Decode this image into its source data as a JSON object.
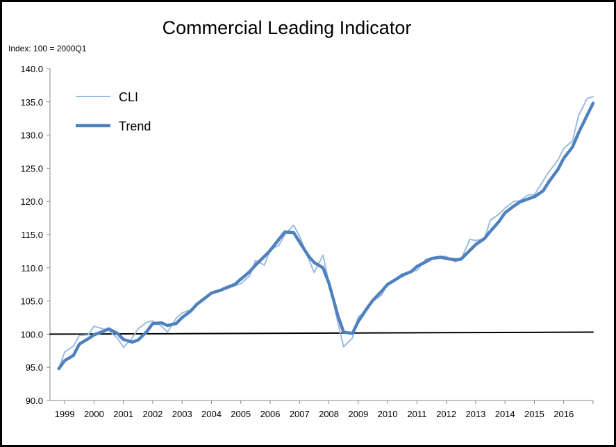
{
  "chart_data": {
    "type": "line",
    "title": "Commercial Leading Indicator",
    "subtitle": "Index: 100 = 2000Q1",
    "xlabel": "",
    "ylabel": "",
    "x_start": 1998.5,
    "x_end": 2017.0,
    "ylim": [
      90.0,
      140.0
    ],
    "y_ticks": [
      "90.0",
      "95.0",
      "100.0",
      "105.0",
      "110.0",
      "115.0",
      "120.0",
      "125.0",
      "130.0",
      "135.0",
      "140.0"
    ],
    "x_labels": [
      "1999",
      "2000",
      "2001",
      "2002",
      "2003",
      "2004",
      "2005",
      "2006",
      "2007",
      "2008",
      "2009",
      "2010",
      "2011",
      "2012",
      "2013",
      "2014",
      "2015",
      "2016"
    ],
    "grid": false,
    "legend_position": "top-left",
    "series": [
      {
        "name": "CLI",
        "color": "#9bbbe0",
        "x": [
          1998.8,
          1999.0,
          1999.3,
          1999.5,
          1999.8,
          2000.0,
          2000.3,
          2000.5,
          2000.8,
          2001.0,
          2001.3,
          2001.5,
          2001.8,
          2002.0,
          2002.3,
          2002.5,
          2002.8,
          2003.0,
          2003.3,
          2003.5,
          2003.8,
          2004.0,
          2004.3,
          2004.5,
          2004.8,
          2005.0,
          2005.3,
          2005.5,
          2005.8,
          2006.0,
          2006.3,
          2006.5,
          2006.8,
          2007.0,
          2007.3,
          2007.5,
          2007.8,
          2008.0,
          2008.3,
          2008.5,
          2008.8,
          2009.0,
          2009.3,
          2009.5,
          2009.8,
          2010.0,
          2010.3,
          2010.5,
          2010.8,
          2011.0,
          2011.3,
          2011.5,
          2011.8,
          2012.0,
          2012.3,
          2012.5,
          2012.8,
          2013.0,
          2013.3,
          2013.5,
          2013.8,
          2014.0,
          2014.3,
          2014.5,
          2014.8,
          2015.0,
          2015.3,
          2015.5,
          2015.8,
          2016.0,
          2016.3,
          2016.5,
          2016.8,
          2017.0
        ],
        "values": [
          94.8,
          97.3,
          98.2,
          99.8,
          99.9,
          101.2,
          100.8,
          100.6,
          99.4,
          98.0,
          99.4,
          100.8,
          101.8,
          102.0,
          101.2,
          100.3,
          102.4,
          103.2,
          103.7,
          104.5,
          105.6,
          106.2,
          106.5,
          106.8,
          107.3,
          107.6,
          108.8,
          111.1,
          110.4,
          112.7,
          113.4,
          115.0,
          116.4,
          114.8,
          111.4,
          109.3,
          111.9,
          107.8,
          101.9,
          98.1,
          99.4,
          102.6,
          103.6,
          105.0,
          105.9,
          107.6,
          108.4,
          108.6,
          109.4,
          109.6,
          111.3,
          111.4,
          111.7,
          111.7,
          110.9,
          111.2,
          114.3,
          114.1,
          114.4,
          117.2,
          118.1,
          119.0,
          120.0,
          120.1,
          121.0,
          121.0,
          123.1,
          124.5,
          126.2,
          128.0,
          129.1,
          132.9,
          135.5,
          135.8
        ]
      },
      {
        "name": "Trend",
        "color": "#4f81bd",
        "x": [
          1998.8,
          1999.0,
          1999.3,
          1999.5,
          1999.8,
          2000.0,
          2000.3,
          2000.5,
          2000.8,
          2001.0,
          2001.3,
          2001.5,
          2001.8,
          2002.0,
          2002.3,
          2002.5,
          2002.8,
          2003.0,
          2003.3,
          2003.5,
          2003.8,
          2004.0,
          2004.3,
          2004.5,
          2004.8,
          2005.0,
          2005.3,
          2005.5,
          2005.8,
          2006.0,
          2006.3,
          2006.5,
          2006.8,
          2007.0,
          2007.3,
          2007.5,
          2007.8,
          2008.0,
          2008.3,
          2008.5,
          2008.8,
          2009.0,
          2009.3,
          2009.5,
          2009.8,
          2010.0,
          2010.3,
          2010.5,
          2010.8,
          2011.0,
          2011.3,
          2011.5,
          2011.8,
          2012.0,
          2012.3,
          2012.5,
          2012.8,
          2013.0,
          2013.3,
          2013.5,
          2013.8,
          2014.0,
          2014.3,
          2014.5,
          2014.8,
          2015.0,
          2015.3,
          2015.5,
          2015.8,
          2016.0,
          2016.3,
          2016.5,
          2016.8,
          2017.0
        ],
        "values": [
          94.8,
          96.0,
          96.8,
          98.5,
          99.3,
          99.9,
          100.4,
          100.8,
          100.1,
          99.2,
          98.8,
          99.1,
          100.4,
          101.6,
          101.7,
          101.3,
          101.6,
          102.5,
          103.5,
          104.5,
          105.5,
          106.2,
          106.6,
          107.0,
          107.5,
          108.3,
          109.4,
          110.4,
          111.7,
          112.6,
          114.3,
          115.4,
          115.3,
          113.9,
          111.8,
          110.8,
          110.0,
          107.7,
          102.9,
          100.3,
          100.1,
          101.9,
          103.9,
          105.1,
          106.5,
          107.5,
          108.3,
          108.9,
          109.4,
          110.2,
          110.9,
          111.4,
          111.6,
          111.4,
          111.2,
          111.3,
          112.6,
          113.5,
          114.4,
          115.5,
          117.0,
          118.3,
          119.3,
          119.9,
          120.4,
          120.7,
          121.6,
          123.0,
          124.8,
          126.5,
          128.2,
          130.3,
          133.0,
          134.8
        ]
      },
      {
        "name": "",
        "color": "#000000",
        "x": [
          1998.5,
          2017.0
        ],
        "values": [
          100.0,
          100.3
        ]
      }
    ]
  }
}
